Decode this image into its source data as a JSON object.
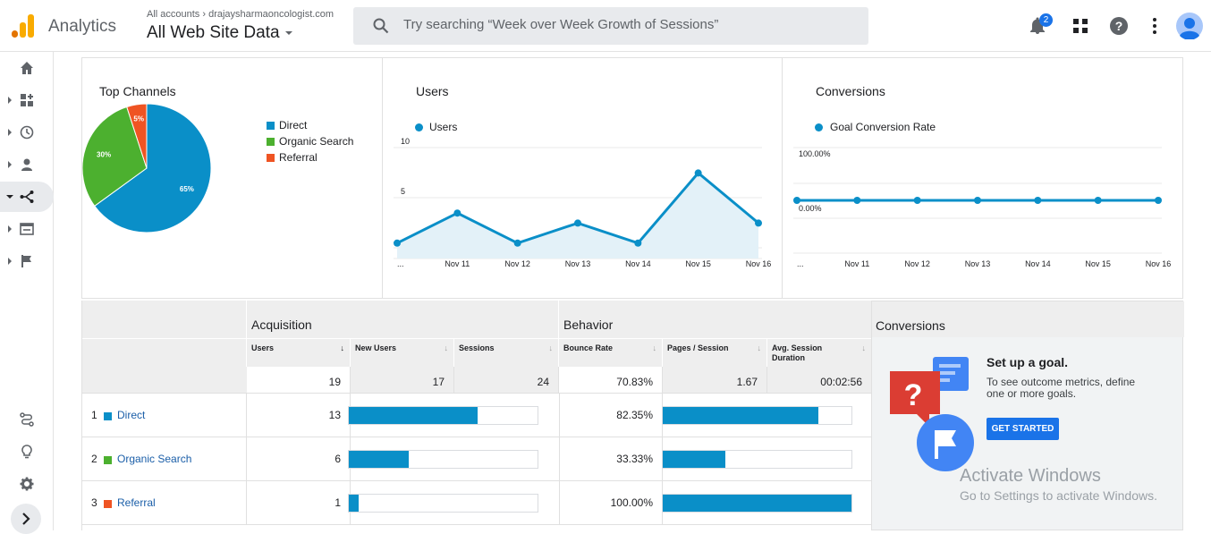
{
  "header": {
    "app_name": "Analytics",
    "account_crumb": "All accounts › drajaysharmaoncologist.com",
    "property_name": "All Web Site Data",
    "search_placeholder": "Try searching “Week over Week Growth of Sessions”",
    "notification_count": "2"
  },
  "icons": [
    "analytics-logo",
    "search-icon",
    "bell-icon",
    "apps-grid-icon",
    "help-icon",
    "more-vert-icon",
    "avatar",
    "home-icon",
    "customization-icon",
    "realtime-clock-icon",
    "audience-person-icon",
    "acquisition-icon",
    "behavior-icon",
    "conversions-flag-icon",
    "attribution-icon",
    "discover-bulb-icon",
    "admin-gear-icon",
    "expand-chevron-icon"
  ],
  "colors": {
    "direct": "#0a8fc8",
    "organic": "#4cb02f",
    "referral": "#ef5423",
    "accent": "#1a73e8"
  },
  "top_channels": {
    "title": "Top Channels",
    "legend": [
      {
        "label": "Direct",
        "color": "#0a8fc8"
      },
      {
        "label": "Organic Search",
        "color": "#4cb02f"
      },
      {
        "label": "Referral",
        "color": "#ef5423"
      }
    ]
  },
  "users_card": {
    "title": "Users",
    "legend": "Users"
  },
  "conversions_card": {
    "title": "Conversions",
    "legend": "Goal Conversion Rate"
  },
  "chart_data": [
    {
      "type": "pie",
      "title": "Top Channels",
      "categories": [
        "Direct",
        "Organic Search",
        "Referral"
      ],
      "values": [
        65,
        30,
        5
      ],
      "labels": [
        "65%",
        "30%",
        "5%"
      ]
    },
    {
      "type": "area",
      "title": "Users",
      "x": [
        "...",
        "Nov 11",
        "Nov 12",
        "Nov 13",
        "Nov 14",
        "Nov 15",
        "Nov 16"
      ],
      "series": [
        {
          "name": "Users",
          "values": [
            1,
            4,
            1,
            3,
            1,
            8,
            3
          ]
        }
      ],
      "yticks": [
        "10",
        "5"
      ],
      "ylim": [
        0,
        10
      ]
    },
    {
      "type": "line",
      "title": "Conversions",
      "x": [
        "...",
        "Nov 11",
        "Nov 12",
        "Nov 13",
        "Nov 14",
        "Nov 15",
        "Nov 16"
      ],
      "series": [
        {
          "name": "Goal Conversion Rate",
          "values": [
            0,
            0,
            0,
            0,
            0,
            0,
            0
          ]
        }
      ],
      "yticks": [
        "100.00%",
        "0.00%"
      ]
    }
  ],
  "table": {
    "groups": {
      "acquisition": "Acquisition",
      "behavior": "Behavior",
      "conversions": "Conversions"
    },
    "columns": {
      "users": "Users",
      "users_sort": "↓",
      "new_users": "New Users",
      "sessions": "Sessions",
      "bounce_rate": "Bounce Rate",
      "pages_session": "Pages / Session",
      "avg_duration": "Avg. Session Duration",
      "sort_indicator": "↓"
    },
    "totals": {
      "users": "19",
      "new_users": "17",
      "sessions": "24",
      "bounce_rate": "70.83%",
      "pages_session": "1.67",
      "avg_duration": "00:02:56"
    },
    "rows": [
      {
        "idx": "1",
        "channel": "Direct",
        "color": "#0a8fc8",
        "users": "13",
        "users_share": 0.684,
        "bounce_rate": "82.35%",
        "bounce_share": 0.8235
      },
      {
        "idx": "2",
        "channel": "Organic Search",
        "color": "#4cb02f",
        "users": "6",
        "users_share": 0.316,
        "bounce_rate": "33.33%",
        "bounce_share": 0.3333
      },
      {
        "idx": "3",
        "channel": "Referral",
        "color": "#ef5423",
        "users": "1",
        "users_share": 0.053,
        "bounce_rate": "100.00%",
        "bounce_share": 1.0
      }
    ]
  },
  "goal_panel": {
    "title": "Set up a goal.",
    "description": "To see outcome metrics, define one or more goals.",
    "button": "GET STARTED"
  },
  "watermark": {
    "line1": "Activate Windows",
    "line2": "Go to Settings to activate Windows."
  }
}
